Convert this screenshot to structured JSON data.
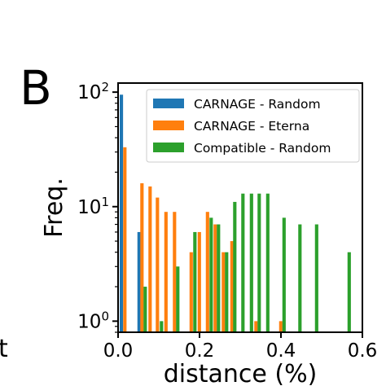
{
  "panel_label": "B",
  "stray_text": "t",
  "chart_data": {
    "type": "bar",
    "xlabel": "distance (%)",
    "ylabel": "Freq.",
    "yscale": "log",
    "xlim": [
      0.0,
      0.6
    ],
    "ylim": [
      0.8,
      120
    ],
    "xticks": [
      {
        "value": 0.0,
        "label": "0.0"
      },
      {
        "value": 0.2,
        "label": "0.2"
      },
      {
        "value": 0.4,
        "label": "0.4"
      },
      {
        "value": 0.6,
        "label": "0.6"
      }
    ],
    "yticks": [
      {
        "value": 1,
        "base": "10",
        "exp": "0"
      },
      {
        "value": 10,
        "base": "10",
        "exp": "1"
      },
      {
        "value": 100,
        "base": "10",
        "exp": "2"
      }
    ],
    "legend_position": "top-right",
    "grid": false,
    "series": [
      {
        "name": "CARNAGE - Random",
        "color": "#1f77b4",
        "bar_width": 0.00825,
        "points": [
          {
            "x": 0.004,
            "y": 95
          },
          {
            "x": 0.0475,
            "y": 6
          }
        ]
      },
      {
        "name": "CARNAGE - Eterna",
        "color": "#ff7f0e",
        "bar_width": 0.00825,
        "points": [
          {
            "x": 0.0125,
            "y": 33
          },
          {
            "x": 0.0545,
            "y": 16
          },
          {
            "x": 0.0745,
            "y": 15
          },
          {
            "x": 0.0925,
            "y": 12
          },
          {
            "x": 0.1135,
            "y": 9
          },
          {
            "x": 0.1345,
            "y": 9
          },
          {
            "x": 0.1755,
            "y": 4
          },
          {
            "x": 0.1955,
            "y": 6
          },
          {
            "x": 0.2155,
            "y": 9
          },
          {
            "x": 0.2345,
            "y": 7
          },
          {
            "x": 0.2545,
            "y": 4
          },
          {
            "x": 0.2755,
            "y": 5
          },
          {
            "x": 0.3345,
            "y": 1
          },
          {
            "x": 0.3955,
            "y": 1
          }
        ]
      },
      {
        "name": "Compatible - Random",
        "color": "#2ca02c",
        "bar_width": 0.00825,
        "points": [
          {
            "x": 0.0625,
            "y": 2
          },
          {
            "x": 0.1025,
            "y": 1
          },
          {
            "x": 0.1425,
            "y": 3
          },
          {
            "x": 0.1845,
            "y": 6
          },
          {
            "x": 0.2245,
            "y": 8
          },
          {
            "x": 0.2425,
            "y": 7
          },
          {
            "x": 0.2625,
            "y": 4
          },
          {
            "x": 0.2825,
            "y": 11
          },
          {
            "x": 0.3025,
            "y": 13
          },
          {
            "x": 0.3235,
            "y": 13
          },
          {
            "x": 0.3425,
            "y": 13
          },
          {
            "x": 0.3635,
            "y": 13
          },
          {
            "x": 0.4035,
            "y": 8
          },
          {
            "x": 0.4425,
            "y": 7
          },
          {
            "x": 0.4835,
            "y": 7
          },
          {
            "x": 0.5635,
            "y": 4
          }
        ]
      }
    ]
  }
}
